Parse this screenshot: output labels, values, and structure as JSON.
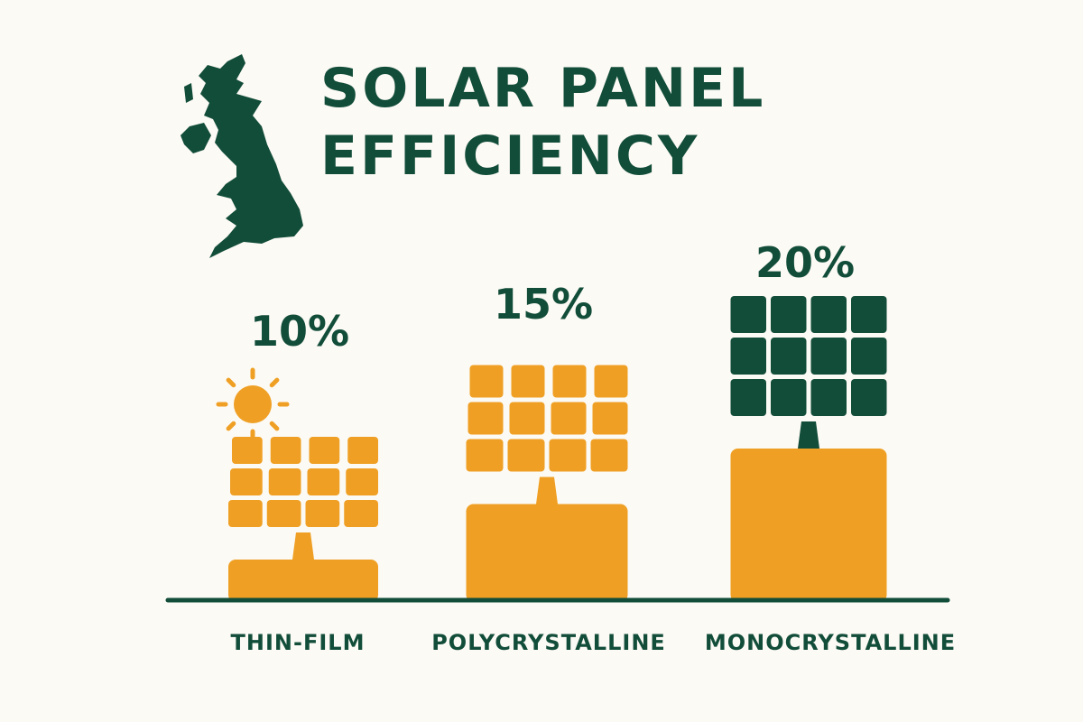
{
  "chart_data": {
    "type": "bar",
    "title": "SOLAR PANEL EFFICIENCY",
    "title_lines": [
      "SOLAR PANEL",
      "EFFICIENCY"
    ],
    "categories": [
      "THIN-FILM",
      "POLYCRYSTALLINE",
      "MONOCRYSTALLINE"
    ],
    "values": [
      10,
      15,
      20
    ],
    "data_labels": [
      "10%",
      "15%",
      "20%"
    ],
    "unit": "%",
    "xlabel": "",
    "ylabel": "",
    "grid": false,
    "colors": {
      "background": "#fcfaf5",
      "accent_green": "#124d3a",
      "accent_orange": "#efa024",
      "panel_colors": [
        "#efa024",
        "#efa024",
        "#124d3a"
      ]
    },
    "icons": [
      "uk-map-icon",
      "sun-icon",
      "solar-panel-icon"
    ]
  }
}
